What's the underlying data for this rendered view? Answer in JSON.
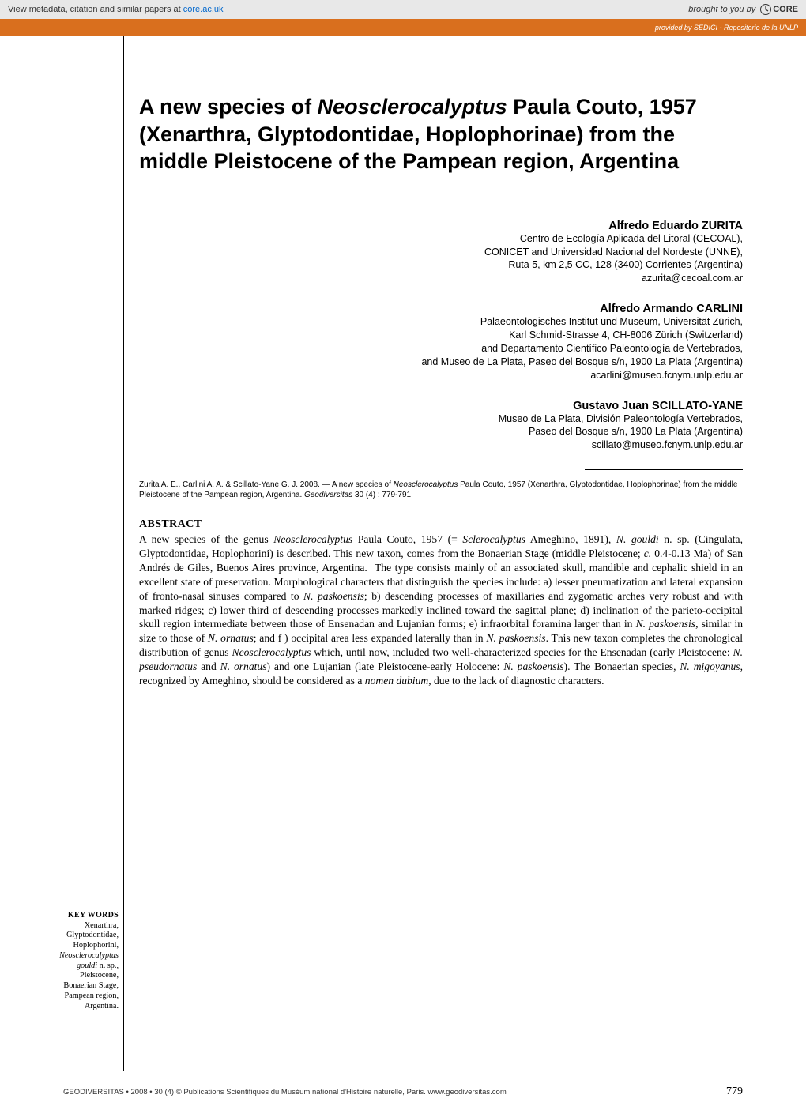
{
  "core_banner": {
    "left_prefix": "View metadata, citation and similar papers at ",
    "left_link": "core.ac.uk",
    "right_prefix": "brought to you by ",
    "logo_text": "CORE"
  },
  "orange_bar": {
    "text": "provided by SEDICI - Repositorio de la UNLP"
  },
  "title_html": "A new species of <span class=\"genus-italic\">Neosclerocalyptus</span> Paula Couto, 1957 (Xenarthra, Glyptodontidae, Hoplophorinae) from the middle Pleistocene of the Pampean region, Argentina",
  "authors": [
    {
      "name": "Alfredo Eduardo ZURITA",
      "affil_html": "Centro de Ecología Aplicada del Litoral (CECOAL),<br>CONICET and Universidad Nacional del Nordeste (UNNE),<br>Ruta 5, km 2,5 CC, 128 (3400) Corrientes (Argentina)<br>azurita@cecoal.com.ar"
    },
    {
      "name": "Alfredo Armando CARLINI",
      "affil_html": "Palaeontologisches Institut und Museum, Universität Zürich,<br>Karl Schmid-Strasse 4, CH-8006 Zürich (Switzerland)<br>and Departamento Científico Paleontología de Vertebrados,<br>and Museo de La Plata, Paseo del Bosque s/n, 1900 La Plata (Argentina)<br>acarlini@museo.fcnym.unlp.edu.ar"
    },
    {
      "name": "Gustavo Juan SCILLATO-YANE",
      "affil_html": "Museo de La Plata, División Paleontología Vertebrados,<br>Paseo del Bosque s/n, 1900 La Plata (Argentina)<br>scillato@museo.fcnym.unlp.edu.ar"
    }
  ],
  "citation_html": "Zurita A. E., Carlini A. A. & Scillato-Yane G. J. 2008. — A new species of <span class=\"citation-italic\">Neosclerocalyptus</span> Paula Couto, 1957 (Xenarthra, Glyptodontidae, Hoplophorinae) from the middle Pleistocene of the Pampean region, Argentina. <span class=\"citation-italic\">Geodiversitas</span> 30 (4) : 779-791.",
  "abstract": {
    "heading": "ABSTRACT",
    "body_html": "A new species of the genus <span class=\"ital\">Neosclerocalyptus</span> Paula Couto, 1957 (= <span class=\"ital\">Sclerocalyptus</span> Ameghino, 1891), <span class=\"ital\">N. gouldi</span> n. sp. (Cingulata, Glyptodontidae, Hoplophorini) is described. This new taxon, comes from the Bonaerian Stage (middle Pleistocene; <span class=\"ital\">c.</span> 0.4-0.13 Ma) of San Andrés de Giles, Buenos Aires province, Argentina.&nbsp;&nbsp;The type consists mainly of an associated skull, mandible and cephalic shield in an excellent state of preservation. Morphological characters that distinguish the species include: a) lesser pneumatization and lateral expansion of fronto-nasal sinuses compared to <span class=\"ital\">N. paskoensis</span>; b) descending processes of maxillaries and zygomatic arches very robust and with marked ridges; c) lower third of descending processes markedly inclined toward the sagittal plane; d) inclination of the parieto-occipital skull region intermediate between those of Ensenadan and Lujanian forms; e) infraorbital foramina larger than in <span class=\"ital\">N. paskoensis</span>, similar in size to those of <span class=\"ital\">N. ornatus</span>; and f ) occipital area less expanded laterally than in <span class=\"ital\">N. paskoensis</span>. This new taxon completes the chronological distribution of genus <span class=\"ital\">Neosclerocalyptus</span> which, until now, included two well-characterized species for the Ensenadan (early Pleistocene: <span class=\"ital\">N. pseudornatus</span> and <span class=\"ital\">N. ornatus</span>) and one Lujanian (late Pleistocene-early Holocene: <span class=\"ital\">N. paskoensis</span>). The Bonaerian species, <span class=\"ital\">N. migoyanus</span>, recognized by Ameghino, should be considered as a <span class=\"ital\">nomen dubium</span>, due to the lack of diagnostic characters."
  },
  "keywords": {
    "heading": "KEY WORDS",
    "items_html": "Xenarthra,<br>Glyptodontidae,<br>Hoplophorini,<br><span class=\"ital\">Neosclerocalyptus<br>gouldi</span> n. sp.,<br>Pleistocene,<br>Bonaerian Stage,<br>Pampean region,<br>Argentina."
  },
  "footer": {
    "left": "GEODIVERSITAS • 2008 • 30 (4)   © Publications Scientifiques du Muséum national d'Histoire naturelle, Paris.   www.geodiversitas.com",
    "page": "779"
  },
  "colors": {
    "orange": "#d96f1e",
    "banner_bg": "#e8e8e8",
    "link": "#0066cc"
  }
}
